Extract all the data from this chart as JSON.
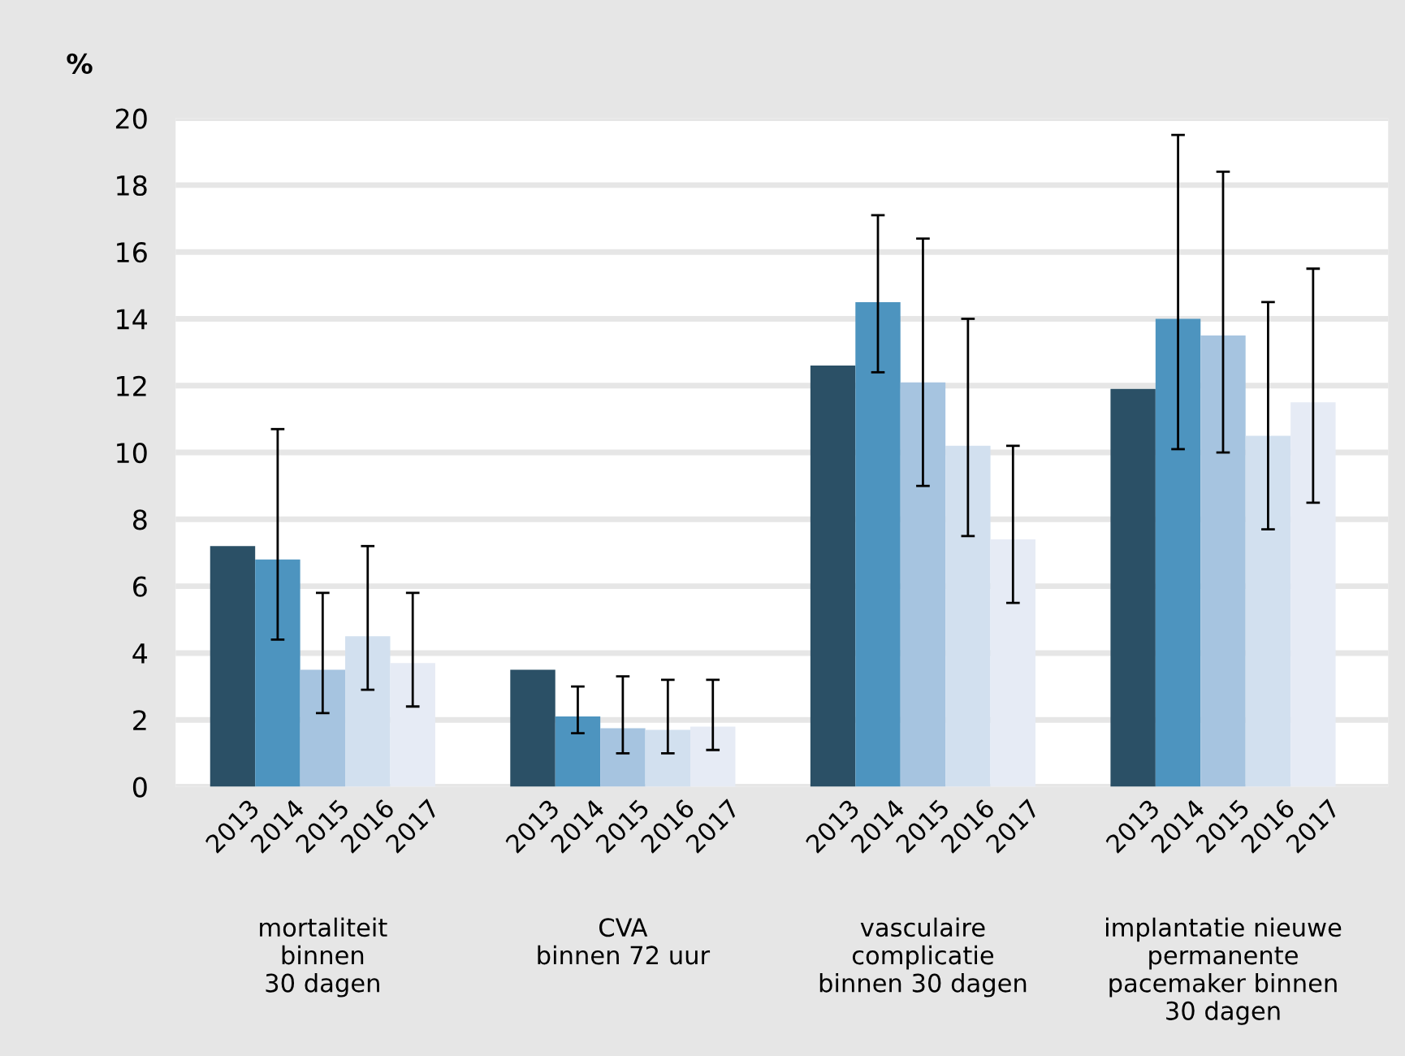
{
  "chart_data": {
    "type": "bar",
    "ylabel": "%",
    "categories": [
      "mortaliteit\nbinnen\n30 dagen",
      "CVA\nbinnen 72 uur",
      "vasculaire\ncomplicatie\nbinnen 30 dagen",
      "implantatie nieuwe\npermanente\npacemaker binnen\n30 dagen"
    ],
    "series": [
      {
        "name": "2013",
        "color": "#2b5066",
        "values": [
          7.2,
          3.5,
          12.6,
          11.9
        ],
        "errors": [
          null,
          null,
          null,
          null
        ]
      },
      {
        "name": "2014",
        "color": "#4d94bf",
        "values": [
          6.8,
          2.1,
          14.5,
          14.0
        ],
        "errors": [
          [
            4.4,
            10.7
          ],
          [
            1.6,
            3.0
          ],
          [
            12.4,
            17.1
          ],
          [
            10.1,
            19.5
          ]
        ]
      },
      {
        "name": "2015",
        "color": "#a6c4e0",
        "values": [
          3.5,
          1.75,
          12.1,
          13.5
        ],
        "errors": [
          [
            2.2,
            5.8
          ],
          [
            1.0,
            3.3
          ],
          [
            9.0,
            16.4
          ],
          [
            10.0,
            18.4
          ]
        ]
      },
      {
        "name": "2016",
        "color": "#d2e0ef",
        "values": [
          4.5,
          1.7,
          10.2,
          10.5
        ],
        "errors": [
          [
            2.9,
            7.2
          ],
          [
            1.0,
            3.2
          ],
          [
            7.5,
            14.0
          ],
          [
            7.7,
            14.5
          ]
        ]
      },
      {
        "name": "2017",
        "color": "#e6ebf5",
        "values": [
          3.7,
          1.8,
          7.4,
          11.5
        ],
        "errors": [
          [
            2.4,
            5.8
          ],
          [
            1.1,
            3.2
          ],
          [
            5.5,
            10.2
          ],
          [
            8.5,
            15.5
          ]
        ]
      }
    ],
    "ylim": [
      0,
      20
    ],
    "yticks": [
      0,
      2,
      4,
      6,
      8,
      10,
      12,
      14,
      16,
      18,
      20
    ],
    "grid": "y",
    "legend": false
  }
}
